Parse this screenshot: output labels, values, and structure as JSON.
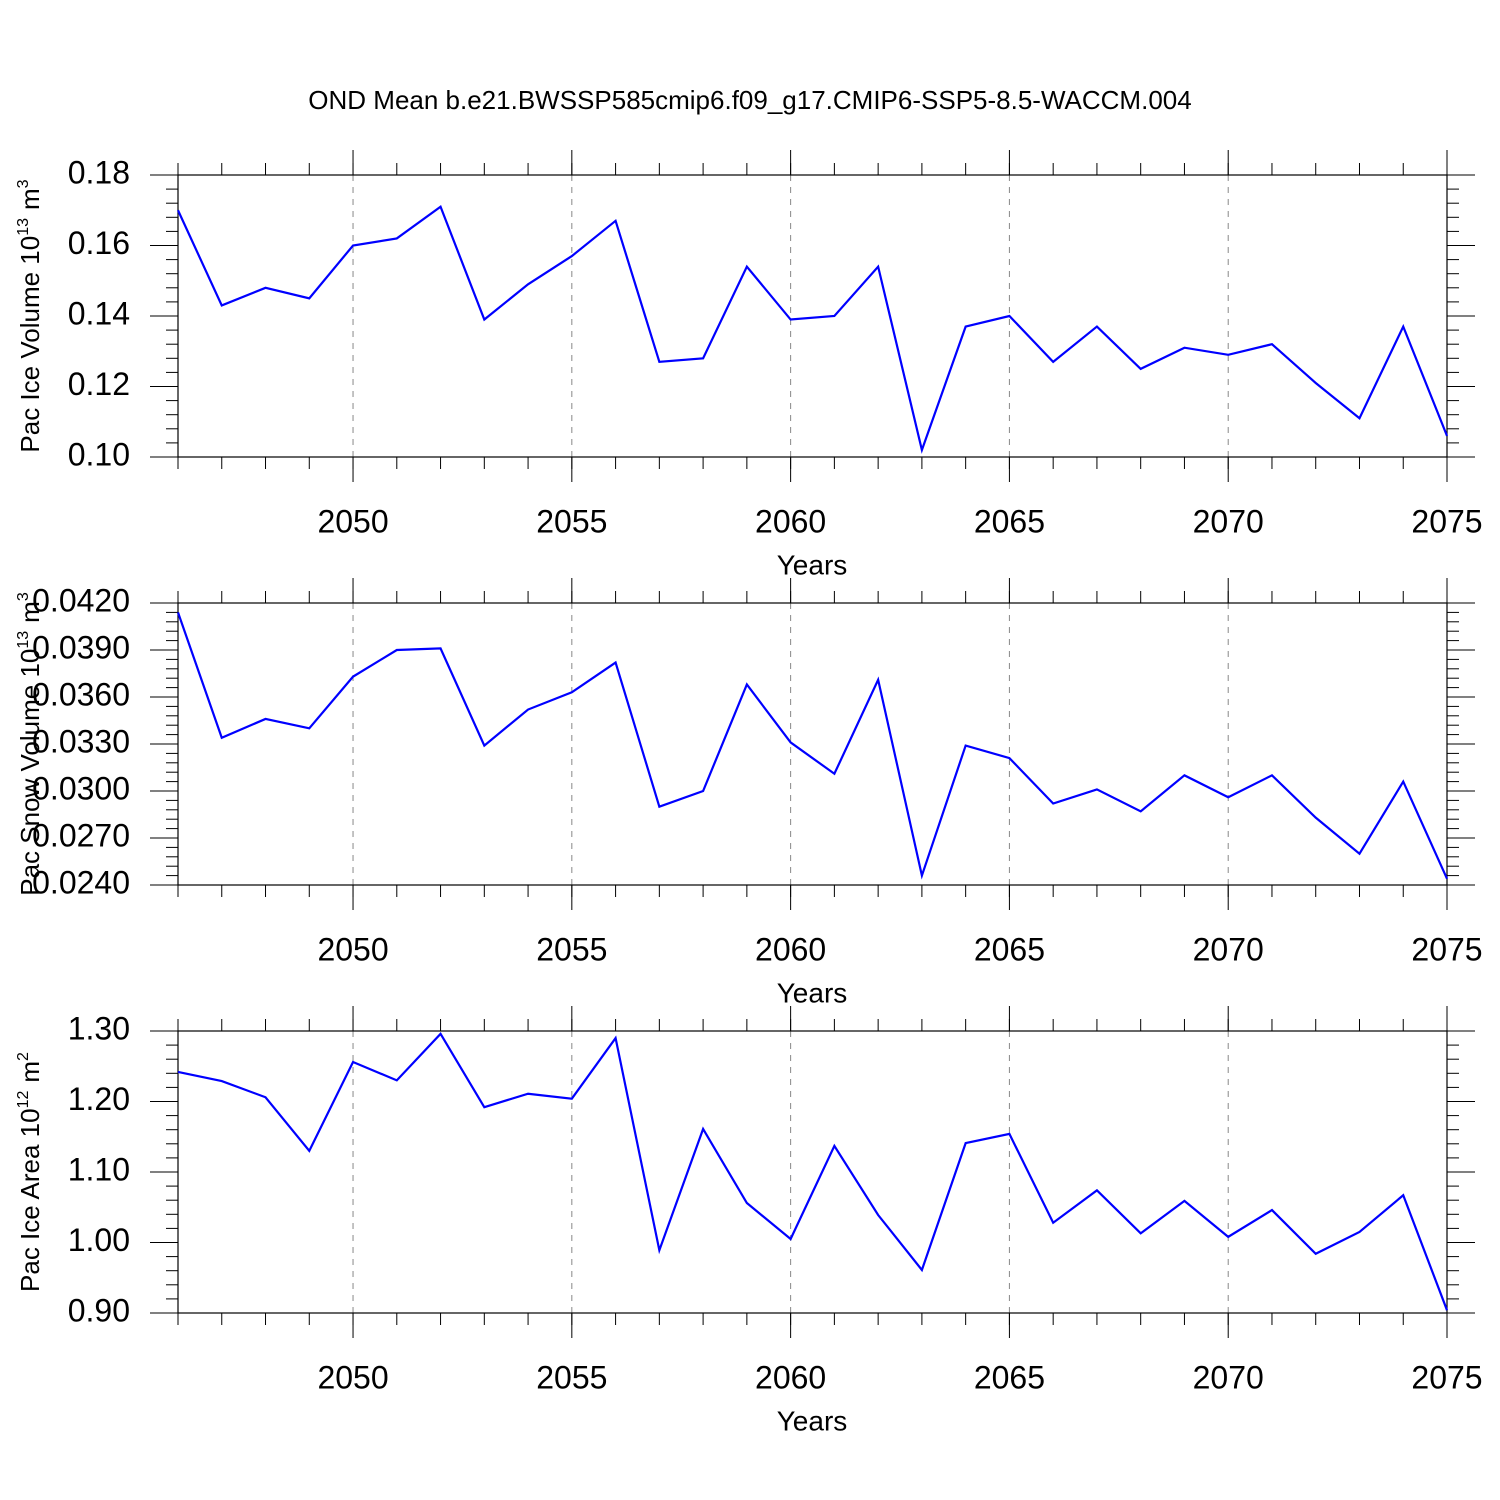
{
  "title": "OND Mean b.e21.BWSSP585cmip6.f09_g17.CMIP6-SSP5-8.5-WACCM.004",
  "chart_data": [
    {
      "type": "line",
      "xlabel": "Years",
      "ylabel": "Pac Ice Volume 10",
      "ylabel_power": "13",
      "ylabel_unit": "m",
      "ylabel_unit_power": "3",
      "x": [
        2046,
        2047,
        2048,
        2049,
        2050,
        2051,
        2052,
        2053,
        2054,
        2055,
        2056,
        2057,
        2058,
        2059,
        2060,
        2061,
        2062,
        2063,
        2064,
        2065,
        2066,
        2067,
        2068,
        2069,
        2070,
        2071,
        2072,
        2073,
        2074,
        2075
      ],
      "series": [
        {
          "color": "#0000ff",
          "values": [
            0.17,
            0.143,
            0.148,
            0.145,
            0.16,
            0.162,
            0.171,
            0.139,
            0.149,
            0.157,
            0.167,
            0.127,
            0.128,
            0.154,
            0.139,
            0.14,
            0.154,
            0.102,
            0.137,
            0.14,
            0.127,
            0.137,
            0.125,
            0.131,
            0.129,
            0.132,
            0.121,
            0.111,
            0.137,
            0.106
          ]
        }
      ],
      "xlim": [
        2046,
        2075
      ],
      "xticks": [
        2050,
        2055,
        2060,
        2065,
        2070,
        2075
      ],
      "ylim": [
        0.1,
        0.18
      ],
      "yticks": [
        {
          "value": 0.1,
          "label": "0.10"
        },
        {
          "value": 0.12,
          "label": "0.12"
        },
        {
          "value": 0.14,
          "label": "0.14"
        },
        {
          "value": 0.16,
          "label": "0.16"
        },
        {
          "value": 0.18,
          "label": "0.18"
        }
      ],
      "grid": true
    },
    {
      "type": "line",
      "xlabel": "Years",
      "ylabel": "Pac Snow Volume 10",
      "ylabel_power": "13",
      "ylabel_unit": "m",
      "ylabel_unit_power": "3",
      "x": [
        2046,
        2047,
        2048,
        2049,
        2050,
        2051,
        2052,
        2053,
        2054,
        2055,
        2056,
        2057,
        2058,
        2059,
        2060,
        2061,
        2062,
        2063,
        2064,
        2065,
        2066,
        2067,
        2068,
        2069,
        2070,
        2071,
        2072,
        2073,
        2074,
        2075
      ],
      "series": [
        {
          "color": "#0000ff",
          "values": [
            0.0414,
            0.0334,
            0.0346,
            0.034,
            0.0373,
            0.039,
            0.0391,
            0.0329,
            0.0352,
            0.0363,
            0.0382,
            0.029,
            0.03,
            0.0368,
            0.0331,
            0.0311,
            0.0371,
            0.0246,
            0.0329,
            0.0321,
            0.0292,
            0.0301,
            0.0287,
            0.031,
            0.0296,
            0.031,
            0.0283,
            0.026,
            0.0306,
            0.0244
          ]
        }
      ],
      "xlim": [
        2046,
        2075
      ],
      "xticks": [
        2050,
        2055,
        2060,
        2065,
        2070,
        2075
      ],
      "ylim": [
        0.024,
        0.042
      ],
      "yticks": [
        {
          "value": 0.024,
          "label": "0.0240"
        },
        {
          "value": 0.027,
          "label": "0.0270"
        },
        {
          "value": 0.03,
          "label": "0.0300"
        },
        {
          "value": 0.033,
          "label": "0.0330"
        },
        {
          "value": 0.036,
          "label": "0.0360"
        },
        {
          "value": 0.039,
          "label": "0.0390"
        },
        {
          "value": 0.042,
          "label": "0.0420"
        }
      ],
      "grid": true
    },
    {
      "type": "line",
      "xlabel": "Years",
      "ylabel": "Pac Ice Area 10",
      "ylabel_power": "12",
      "ylabel_unit": "m",
      "ylabel_unit_power": "2",
      "x": [
        2046,
        2047,
        2048,
        2049,
        2050,
        2051,
        2052,
        2053,
        2054,
        2055,
        2056,
        2057,
        2058,
        2059,
        2060,
        2061,
        2062,
        2063,
        2064,
        2065,
        2066,
        2067,
        2068,
        2069,
        2070,
        2071,
        2072,
        2073,
        2074,
        2075
      ],
      "series": [
        {
          "color": "#0000ff",
          "values": [
            1.242,
            1.229,
            1.206,
            1.13,
            1.256,
            1.23,
            1.296,
            1.192,
            1.211,
            1.204,
            1.29,
            0.989,
            1.161,
            1.056,
            1.005,
            1.137,
            1.039,
            0.961,
            1.141,
            1.154,
            1.028,
            1.074,
            1.013,
            1.059,
            1.008,
            1.046,
            0.984,
            1.015,
            1.067,
            0.904
          ]
        }
      ],
      "xlim": [
        2046,
        2075
      ],
      "xticks": [
        2050,
        2055,
        2060,
        2065,
        2070,
        2075
      ],
      "ylim": [
        0.9,
        1.3
      ],
      "yticks": [
        {
          "value": 0.9,
          "label": "0.90"
        },
        {
          "value": 1.0,
          "label": "1.00"
        },
        {
          "value": 1.1,
          "label": "1.10"
        },
        {
          "value": 1.2,
          "label": "1.20"
        },
        {
          "value": 1.3,
          "label": "1.30"
        }
      ],
      "grid": true
    }
  ]
}
